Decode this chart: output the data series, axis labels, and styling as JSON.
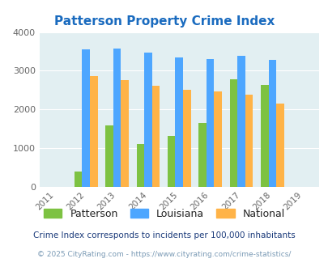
{
  "title": "Patterson Property Crime Index",
  "all_years": [
    2011,
    2012,
    2013,
    2014,
    2015,
    2016,
    2017,
    2018,
    2019
  ],
  "data_years": [
    2012,
    2013,
    2014,
    2015,
    2016,
    2017,
    2018
  ],
  "patterson": [
    400,
    1580,
    1110,
    1325,
    1650,
    2775,
    2630
  ],
  "louisiana": [
    3550,
    3575,
    3460,
    3350,
    3310,
    3380,
    3275
  ],
  "national": [
    2870,
    2750,
    2610,
    2500,
    2460,
    2385,
    2160
  ],
  "patterson_color": "#7dc242",
  "louisiana_color": "#4da6ff",
  "national_color": "#ffb347",
  "bg_color": "#e2eff2",
  "ylim": [
    0,
    4000
  ],
  "yticks": [
    0,
    1000,
    2000,
    3000,
    4000
  ],
  "legend_labels": [
    "Patterson",
    "Louisiana",
    "National"
  ],
  "footnote1": "Crime Index corresponds to incidents per 100,000 inhabitants",
  "footnote2": "© 2025 CityRating.com - https://www.cityrating.com/crime-statistics/",
  "title_color": "#1a6bbf",
  "footnote1_color": "#1a3a7a",
  "footnote2_color": "#7a9ab5",
  "bar_width": 0.25
}
